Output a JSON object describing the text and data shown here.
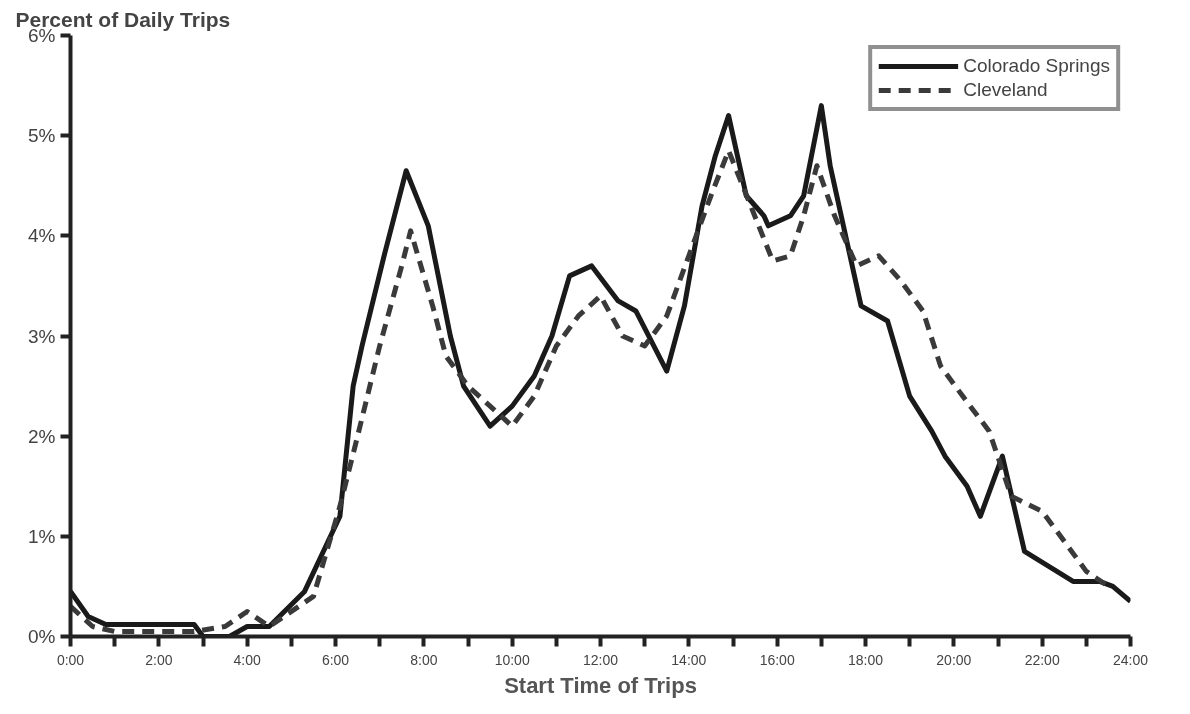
{
  "chart_data": {
    "type": "line",
    "ylabel": "Percent of Daily Trips",
    "xlabel": "Start Time of Trips",
    "xlim": [
      0,
      24
    ],
    "ylim": [
      0,
      6
    ],
    "xticks": [
      {
        "value": 0,
        "label": "0:00"
      },
      {
        "value": 1,
        "label": null
      },
      {
        "value": 2,
        "label": "2:00"
      },
      {
        "value": 3,
        "label": null
      },
      {
        "value": 4,
        "label": "4:00"
      },
      {
        "value": 5,
        "label": null
      },
      {
        "value": 6,
        "label": "6:00"
      },
      {
        "value": 7,
        "label": null
      },
      {
        "value": 8,
        "label": "8:00"
      },
      {
        "value": 9,
        "label": null
      },
      {
        "value": 10,
        "label": "10:00"
      },
      {
        "value": 11,
        "label": null
      },
      {
        "value": 12,
        "label": "12:00"
      },
      {
        "value": 13,
        "label": null
      },
      {
        "value": 14,
        "label": "14:00"
      },
      {
        "value": 15,
        "label": null
      },
      {
        "value": 16,
        "label": "16:00"
      },
      {
        "value": 17,
        "label": null
      },
      {
        "value": 18,
        "label": "18:00"
      },
      {
        "value": 19,
        "label": null
      },
      {
        "value": 20,
        "label": "20:00"
      },
      {
        "value": 21,
        "label": null
      },
      {
        "value": 22,
        "label": "22:00"
      },
      {
        "value": 23,
        "label": null
      },
      {
        "value": 24,
        "label": "24:00"
      }
    ],
    "yticks": [
      {
        "value": 0,
        "label": "0%"
      },
      {
        "value": 1,
        "label": "1%"
      },
      {
        "value": 2,
        "label": "2%"
      },
      {
        "value": 3,
        "label": "3%"
      },
      {
        "value": 4,
        "label": "4%"
      },
      {
        "value": 5,
        "label": "5%"
      },
      {
        "value": 6,
        "label": "6%"
      }
    ],
    "grid": false,
    "legend": "top right",
    "marker": "none",
    "series": [
      {
        "name": "Colorado Springs",
        "color": "#1a1a1a",
        "line_style": "solid",
        "x": [
          0,
          0.4,
          0.8,
          2.8,
          3.0,
          3.6,
          4.0,
          4.5,
          5.3,
          6.1,
          6.4,
          6.6,
          7.1,
          7.6,
          8.1,
          8.6,
          8.9,
          9.2,
          9.5,
          10.0,
          10.5,
          10.9,
          11.3,
          11.8,
          12.4,
          12.8,
          13.5,
          13.9,
          14.3,
          14.6,
          14.9,
          15.3,
          15.7,
          15.8,
          16.3,
          16.6,
          17.0,
          17.2,
          17.9,
          18.5,
          19.0,
          19.5,
          19.8,
          20.3,
          20.6,
          21.1,
          21.6,
          22.7,
          23.3,
          23.6,
          24
        ],
        "values": [
          0.45,
          0.2,
          0.12,
          0.12,
          0.0,
          0.0,
          0.1,
          0.1,
          0.45,
          1.2,
          2.5,
          2.9,
          3.8,
          4.65,
          4.1,
          3.0,
          2.5,
          2.3,
          2.1,
          2.3,
          2.6,
          3.0,
          3.6,
          3.7,
          3.35,
          3.25,
          2.65,
          3.3,
          4.3,
          4.8,
          5.2,
          4.4,
          4.2,
          4.1,
          4.2,
          4.4,
          5.3,
          4.7,
          3.3,
          3.15,
          2.4,
          2.05,
          1.8,
          1.5,
          1.2,
          1.8,
          0.85,
          0.55,
          0.55,
          0.5,
          0.35
        ]
      },
      {
        "name": "Cleveland",
        "color": "#3a3a3a",
        "line_style": "dashed",
        "x": [
          0,
          0.5,
          1.0,
          2.8,
          3.5,
          4.0,
          4.5,
          5.5,
          6.1,
          6.5,
          7.0,
          7.5,
          7.7,
          8.2,
          8.5,
          9.0,
          9.5,
          10.0,
          10.5,
          11.0,
          11.5,
          12.0,
          12.5,
          13.0,
          13.5,
          14.0,
          14.5,
          14.9,
          15.4,
          15.9,
          16.3,
          16.6,
          16.9,
          17.3,
          17.8,
          18.3,
          18.8,
          19.3,
          19.7,
          20.2,
          20.8,
          21.3,
          22.0,
          22.5,
          23.0,
          23.5
        ],
        "values": [
          0.3,
          0.1,
          0.05,
          0.05,
          0.1,
          0.25,
          0.1,
          0.4,
          1.3,
          2.0,
          2.9,
          3.7,
          4.05,
          3.3,
          2.8,
          2.5,
          2.3,
          2.1,
          2.4,
          2.9,
          3.2,
          3.4,
          3.0,
          2.9,
          3.2,
          3.8,
          4.4,
          4.85,
          4.3,
          3.75,
          3.8,
          4.2,
          4.7,
          4.2,
          3.7,
          3.8,
          3.55,
          3.25,
          2.7,
          2.4,
          2.05,
          1.4,
          1.25,
          0.95,
          0.65,
          0.5
        ]
      }
    ]
  }
}
